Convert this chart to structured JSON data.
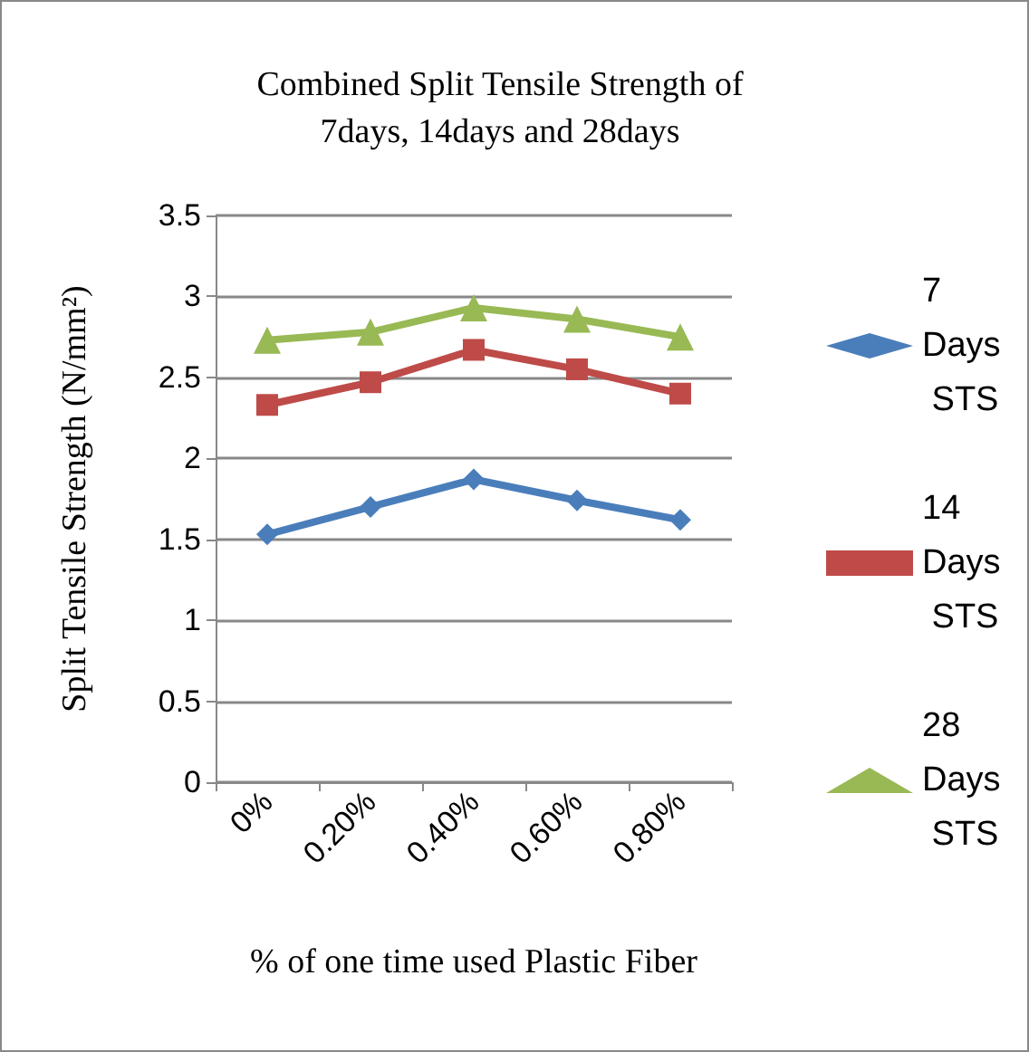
{
  "chart_data": {
    "type": "line",
    "title": "Combined Split Tensile Strength of\n7days, 14days and 28days",
    "xlabel": "% of one time used Plastic Fiber",
    "ylabel": "Split Tensile Strength (N/mm²)",
    "categories": [
      "0%",
      "0.20%",
      "0.40%",
      "0.60%",
      "0.80%"
    ],
    "series": [
      {
        "name": "7 Days STS",
        "color": "#4a7ebb",
        "marker": "diamond",
        "values": [
          1.53,
          1.7,
          1.87,
          1.74,
          1.62
        ]
      },
      {
        "name": "14 Days STS",
        "color": "#be4b48",
        "marker": "square",
        "values": [
          2.33,
          2.47,
          2.67,
          2.55,
          2.4
        ]
      },
      {
        "name": "28 Days STS",
        "color": "#98b954",
        "marker": "triangle",
        "values": [
          2.73,
          2.78,
          2.93,
          2.86,
          2.75
        ]
      }
    ],
    "ylim": [
      0,
      3.5
    ],
    "yticks": [
      0,
      0.5,
      1,
      1.5,
      2,
      2.5,
      3,
      3.5
    ],
    "grid": "y",
    "legend": "right"
  }
}
